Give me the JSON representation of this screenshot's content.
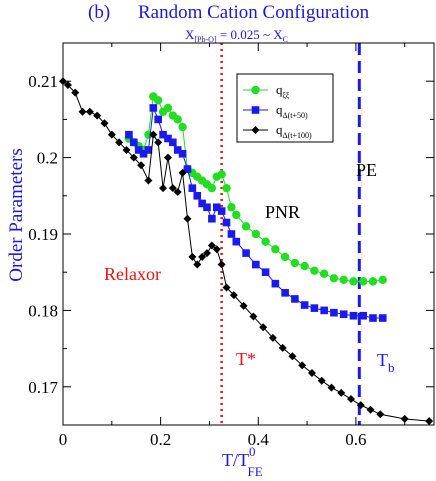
{
  "chart_data": {
    "type": "line",
    "panel_label": "(b)",
    "title": "Random Cation Configuration",
    "subtitle": {
      "x_main": "X",
      "x_sub": "[Pb-O]",
      "mid": " = 0.025 ~ X",
      "c_sub": "C"
    },
    "xlabel": {
      "main": "T/T",
      "sup": "0",
      "sub": "FE"
    },
    "ylabel": "Order Parameters",
    "xlim": [
      0.0,
      0.76
    ],
    "ylim": [
      0.165,
      0.215
    ],
    "x_ticks": [
      0,
      0.2,
      0.4,
      0.6
    ],
    "x_tick_labels": [
      "0",
      "0.2",
      "0.4",
      "0.6"
    ],
    "y_ticks": [
      0.17,
      0.18,
      0.19,
      0.2,
      0.21
    ],
    "y_tick_labels": [
      "0.17",
      "0.18",
      "0.19",
      "0.2",
      "0.21"
    ],
    "legend_position": "top-right",
    "series": [
      {
        "name_main": "q",
        "name_sub": "ξξ",
        "color": "#22dd22",
        "marker": "circle",
        "x": [
          0.135,
          0.145,
          0.155,
          0.165,
          0.175,
          0.185,
          0.195,
          0.205,
          0.215,
          0.225,
          0.235,
          0.245,
          0.255,
          0.265,
          0.275,
          0.285,
          0.295,
          0.305,
          0.315,
          0.325,
          0.335,
          0.345,
          0.355,
          0.375,
          0.395,
          0.415,
          0.435,
          0.455,
          0.475,
          0.495,
          0.515,
          0.535,
          0.555,
          0.575,
          0.595,
          0.615,
          0.635,
          0.655
        ],
        "y": [
          0.2025,
          0.202,
          0.2015,
          0.201,
          0.203,
          0.208,
          0.2075,
          0.206,
          0.2065,
          0.2055,
          0.205,
          0.204,
          0.1985,
          0.198,
          0.1975,
          0.197,
          0.1965,
          0.196,
          0.1975,
          0.1978,
          0.196,
          0.1935,
          0.1925,
          0.191,
          0.19,
          0.189,
          0.188,
          0.187,
          0.1862,
          0.1858,
          0.1852,
          0.1848,
          0.1842,
          0.184,
          0.1838,
          0.1838,
          0.1838,
          0.184
        ]
      },
      {
        "name_main": "q",
        "name_sub": "Δ(t+50)",
        "color": "#1a1aee",
        "marker": "square",
        "x": [
          0.135,
          0.145,
          0.155,
          0.165,
          0.175,
          0.185,
          0.195,
          0.205,
          0.215,
          0.225,
          0.235,
          0.245,
          0.255,
          0.265,
          0.275,
          0.285,
          0.295,
          0.305,
          0.315,
          0.325,
          0.335,
          0.345,
          0.355,
          0.375,
          0.395,
          0.415,
          0.435,
          0.455,
          0.475,
          0.495,
          0.515,
          0.535,
          0.555,
          0.575,
          0.595,
          0.615,
          0.635,
          0.655
        ],
        "y": [
          0.203,
          0.202,
          0.201,
          0.2005,
          0.201,
          0.2065,
          0.205,
          0.203,
          0.2025,
          0.202,
          0.201,
          0.2005,
          0.1985,
          0.196,
          0.195,
          0.194,
          0.1935,
          0.192,
          0.1935,
          0.193,
          0.1915,
          0.19,
          0.189,
          0.1875,
          0.186,
          0.185,
          0.1835,
          0.1823,
          0.1815,
          0.1807,
          0.1803,
          0.18,
          0.1797,
          0.1795,
          0.1793,
          0.1793,
          0.179,
          0.179
        ]
      },
      {
        "name_main": "q",
        "name_sub": "Δ(t+100)",
        "color": "#000000",
        "marker": "diamond",
        "x": [
          0.0,
          0.01,
          0.025,
          0.04,
          0.055,
          0.07,
          0.085,
          0.1,
          0.115,
          0.13,
          0.145,
          0.16,
          0.175,
          0.185,
          0.195,
          0.205,
          0.215,
          0.225,
          0.235,
          0.245,
          0.255,
          0.265,
          0.275,
          0.285,
          0.295,
          0.305,
          0.315,
          0.325,
          0.335,
          0.35,
          0.37,
          0.39,
          0.41,
          0.43,
          0.45,
          0.47,
          0.49,
          0.51,
          0.53,
          0.55,
          0.57,
          0.59,
          0.61,
          0.63,
          0.65,
          0.7,
          0.75
        ],
        "y": [
          0.21,
          0.2095,
          0.2085,
          0.206,
          0.206,
          0.2055,
          0.2045,
          0.203,
          0.202,
          0.201,
          0.2,
          0.199,
          0.197,
          0.203,
          0.202,
          0.196,
          0.2,
          0.196,
          0.1955,
          0.198,
          0.192,
          0.187,
          0.186,
          0.187,
          0.1875,
          0.1885,
          0.188,
          0.186,
          0.183,
          0.182,
          0.1806,
          0.1792,
          0.1778,
          0.1764,
          0.1751,
          0.174,
          0.1728,
          0.1718,
          0.1708,
          0.1699,
          0.1692,
          0.1684,
          0.1676,
          0.167,
          0.1664,
          0.1658,
          0.1655
        ]
      }
    ],
    "vlines": [
      {
        "x": 0.325,
        "color": "#ee1111",
        "style": "dotted"
      },
      {
        "x": 0.607,
        "color": "#1a1aee",
        "style": "dashed"
      }
    ],
    "annotations": {
      "pe": {
        "text": "PE",
        "color": "#000000"
      },
      "pnr": {
        "text": "PNR",
        "color": "#000000"
      },
      "relaxor": {
        "text": "Relaxor",
        "color": "#ee1111"
      },
      "tstar": {
        "text": "T*",
        "color": "#ee1111"
      },
      "tb_main": {
        "text": "T",
        "color": "#1a1aee"
      },
      "tb_sub": {
        "text": "b",
        "color": "#1a1aee"
      }
    }
  }
}
